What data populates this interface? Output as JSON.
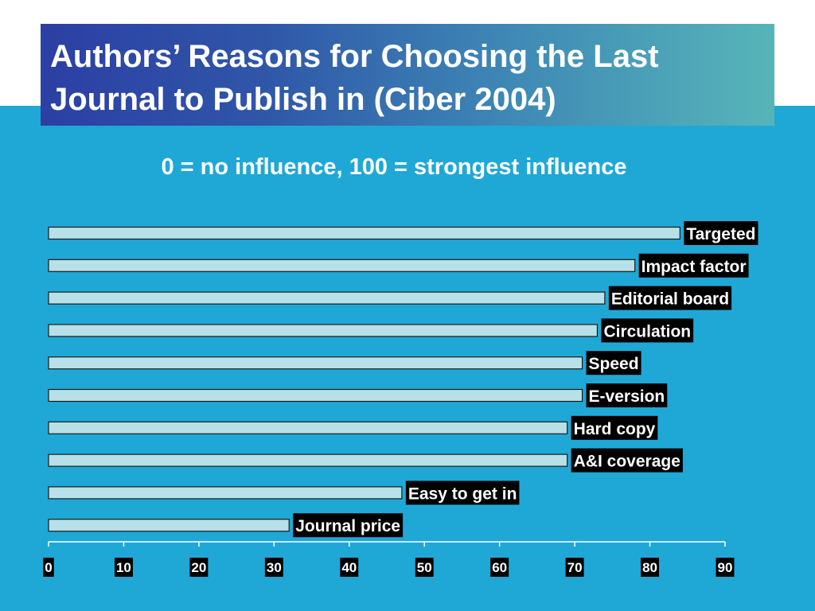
{
  "slide": {
    "title": "Authors’ Reasons for Choosing the Last Journal to Publish in (Ciber 2004)",
    "subtitle": "0 = no influence, 100 = strongest influence"
  },
  "colors": {
    "background": "#1fa8d6",
    "bar_fill": "#b8e0e8",
    "label_box": "#000000",
    "text": "#ffffff"
  },
  "chart_data": {
    "type": "bar",
    "orientation": "horizontal",
    "categories": [
      "Targeted",
      "Impact factor",
      "Editorial board",
      "Circulation",
      "Speed",
      "E-version",
      "Hard copy",
      "A&I coverage",
      "Easy to get in",
      "Journal price"
    ],
    "values": [
      84,
      78,
      74,
      73,
      71,
      71,
      69,
      69,
      47,
      32
    ],
    "xlim": [
      0,
      90
    ],
    "xticks": [
      0,
      10,
      20,
      30,
      40,
      50,
      60,
      70,
      80,
      90
    ],
    "title": "",
    "xlabel": "",
    "ylabel": "",
    "grid": false,
    "legend": false
  }
}
